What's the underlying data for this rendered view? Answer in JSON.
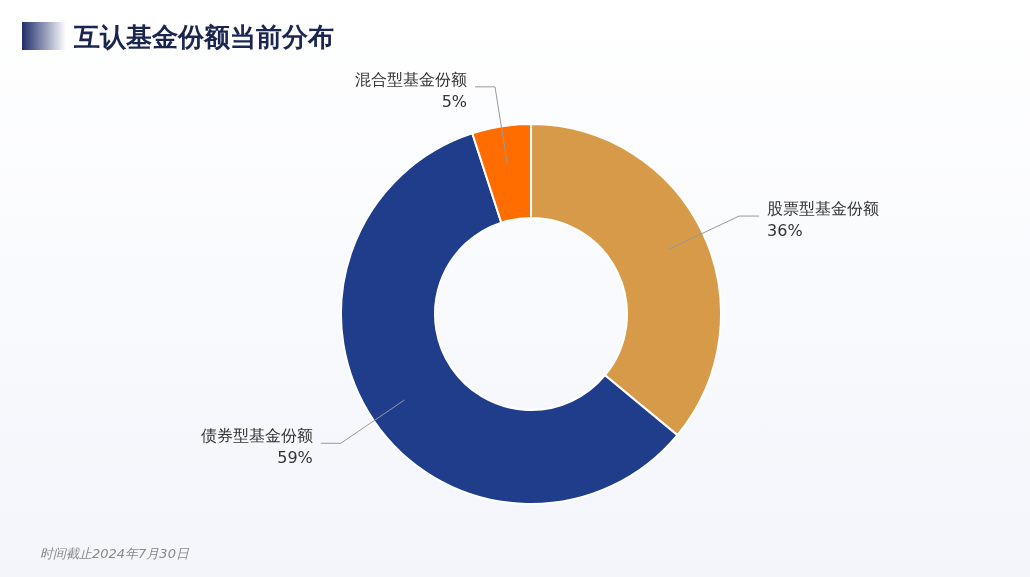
{
  "chart_data": {
    "type": "donut",
    "title": "互认基金份额当前分布",
    "categories": [
      "股票型基金份额",
      "债券型基金份额",
      "混合型基金份额"
    ],
    "values": [
      36,
      59,
      5
    ],
    "colors": [
      "#d69a48",
      "#1f3d8a",
      "#ff6d00"
    ],
    "value_labels": [
      "36%",
      "59%",
      "5%"
    ],
    "annotations": [
      "时间截止2024年7月30日"
    ]
  }
}
